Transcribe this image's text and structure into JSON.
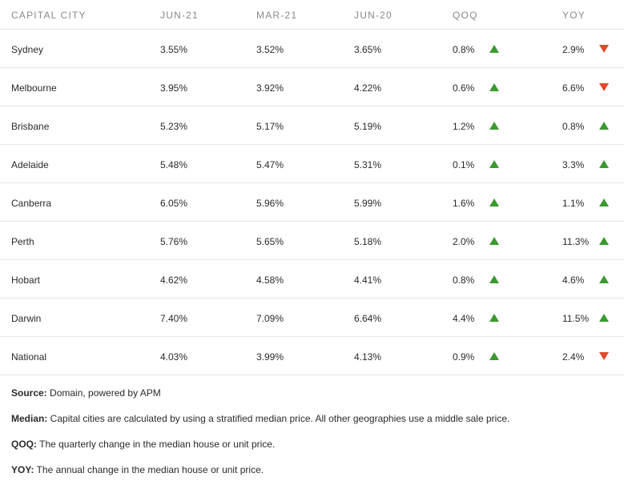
{
  "table": {
    "headers": {
      "city": "CAPITAL CITY",
      "jun21": "JUN-21",
      "mar21": "MAR-21",
      "jun20": "JUN-20",
      "qoq": "QOQ",
      "yoy": "YOY"
    },
    "rows": [
      {
        "city": "Sydney",
        "jun21": "3.55%",
        "mar21": "3.52%",
        "jun20": "3.65%",
        "qoq": "0.8%",
        "qoq_dir": "up",
        "yoy": "2.9%",
        "yoy_dir": "down"
      },
      {
        "city": "Melbourne",
        "jun21": "3.95%",
        "mar21": "3.92%",
        "jun20": "4.22%",
        "qoq": "0.6%",
        "qoq_dir": "up",
        "yoy": "6.6%",
        "yoy_dir": "down"
      },
      {
        "city": "Brisbane",
        "jun21": "5.23%",
        "mar21": "5.17%",
        "jun20": "5.19%",
        "qoq": "1.2%",
        "qoq_dir": "up",
        "yoy": "0.8%",
        "yoy_dir": "up"
      },
      {
        "city": "Adelaide",
        "jun21": "5.48%",
        "mar21": "5.47%",
        "jun20": "5.31%",
        "qoq": "0.1%",
        "qoq_dir": "up",
        "yoy": "3.3%",
        "yoy_dir": "up"
      },
      {
        "city": "Canberra",
        "jun21": "6.05%",
        "mar21": "5.96%",
        "jun20": "5.99%",
        "qoq": "1.6%",
        "qoq_dir": "up",
        "yoy": "1.1%",
        "yoy_dir": "up"
      },
      {
        "city": "Perth",
        "jun21": "5.76%",
        "mar21": "5.65%",
        "jun20": "5.18%",
        "qoq": "2.0%",
        "qoq_dir": "up",
        "yoy": "11.3%",
        "yoy_dir": "up"
      },
      {
        "city": "Hobart",
        "jun21": "4.62%",
        "mar21": "4.58%",
        "jun20": "4.41%",
        "qoq": "0.8%",
        "qoq_dir": "up",
        "yoy": "4.6%",
        "yoy_dir": "up"
      },
      {
        "city": "Darwin",
        "jun21": "7.40%",
        "mar21": "7.09%",
        "jun20": "6.64%",
        "qoq": "4.4%",
        "qoq_dir": "up",
        "yoy": "11.5%",
        "yoy_dir": "up"
      },
      {
        "city": "National",
        "jun21": "4.03%",
        "mar21": "3.99%",
        "jun20": "4.13%",
        "qoq": "0.9%",
        "qoq_dir": "up",
        "yoy": "2.4%",
        "yoy_dir": "down"
      }
    ]
  },
  "notes": {
    "source": {
      "label": "Source:",
      "text": " Domain, powered by APM"
    },
    "median": {
      "label": "Median:",
      "text": " Capital cities are calculated by using a stratified median price. All other geographies use a middle sale price."
    },
    "qoq": {
      "label": "QOQ:",
      "text": " The quarterly change in the median house or unit price."
    },
    "yoy": {
      "label": "YOY:",
      "text": " The annual change in the median house or unit price."
    }
  },
  "colors": {
    "up": "#3a9a2f",
    "down": "#e04a2b",
    "header_text": "#8a8a8a",
    "row_divider": "#e6e6e6"
  },
  "icons": {
    "up": "triangle-up-icon",
    "down": "triangle-down-icon"
  }
}
